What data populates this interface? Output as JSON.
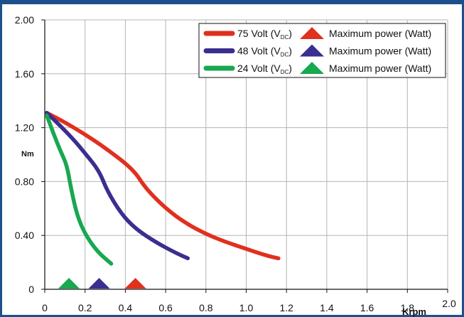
{
  "chart_data": {
    "type": "line",
    "ylabel": "Nm",
    "xunit": "Krpm",
    "xlim": [
      0,
      2.0
    ],
    "ylim": [
      0,
      2.0
    ],
    "x_ticks": [
      "0",
      "0.2",
      "0.4",
      "0.6",
      "0.8",
      "1.0",
      "1.2",
      "1.4",
      "1.6",
      "1.8",
      "2.0"
    ],
    "y_ticks": [
      "0",
      "0.40",
      "0.80",
      "1.20",
      "1.60",
      "2.00"
    ],
    "x_tick_values": [
      0,
      0.2,
      0.4,
      0.6,
      0.8,
      1.0,
      1.2,
      1.4,
      1.6,
      1.8,
      2.0
    ],
    "y_tick_values": [
      0,
      0.4,
      0.8,
      1.2,
      1.6,
      2.0
    ],
    "grid": true,
    "legend_position": "top-right",
    "legend_marker_label": "Maximum power (Watt)",
    "series": [
      {
        "name": "75 Volt",
        "label_prefix": "75 Volt (V",
        "label_sub": "DC",
        "label_suffix": ")",
        "color": "#e0301e",
        "points": [
          [
            0.01,
            1.31
          ],
          [
            0.1,
            1.24
          ],
          [
            0.2,
            1.15
          ],
          [
            0.3,
            1.05
          ],
          [
            0.44,
            0.89
          ],
          [
            0.5,
            0.75
          ],
          [
            0.6,
            0.6
          ],
          [
            0.7,
            0.49
          ],
          [
            0.8,
            0.41
          ],
          [
            0.9,
            0.35
          ],
          [
            1.0,
            0.3
          ],
          [
            1.1,
            0.25
          ],
          [
            1.16,
            0.23
          ]
        ],
        "max_power_x": 0.45
      },
      {
        "name": "48 Volt",
        "label_prefix": "48 Volt (V",
        "label_sub": "DC",
        "label_suffix": ")",
        "color": "#3a2e8f",
        "points": [
          [
            0.01,
            1.31
          ],
          [
            0.08,
            1.21
          ],
          [
            0.15,
            1.1
          ],
          [
            0.2,
            1.01
          ],
          [
            0.27,
            0.88
          ],
          [
            0.31,
            0.73
          ],
          [
            0.38,
            0.56
          ],
          [
            0.45,
            0.45
          ],
          [
            0.55,
            0.35
          ],
          [
            0.65,
            0.27
          ],
          [
            0.71,
            0.23
          ]
        ],
        "max_power_x": 0.27
      },
      {
        "name": "24 Volt",
        "label_prefix": "24 Volt (V",
        "label_sub": "DC",
        "label_suffix": ")",
        "color": "#18a850",
        "points": [
          [
            0.01,
            1.29
          ],
          [
            0.05,
            1.13
          ],
          [
            0.08,
            1.02
          ],
          [
            0.11,
            0.92
          ],
          [
            0.13,
            0.75
          ],
          [
            0.16,
            0.55
          ],
          [
            0.2,
            0.41
          ],
          [
            0.26,
            0.28
          ],
          [
            0.33,
            0.19
          ]
        ],
        "max_power_x": 0.12
      }
    ]
  }
}
